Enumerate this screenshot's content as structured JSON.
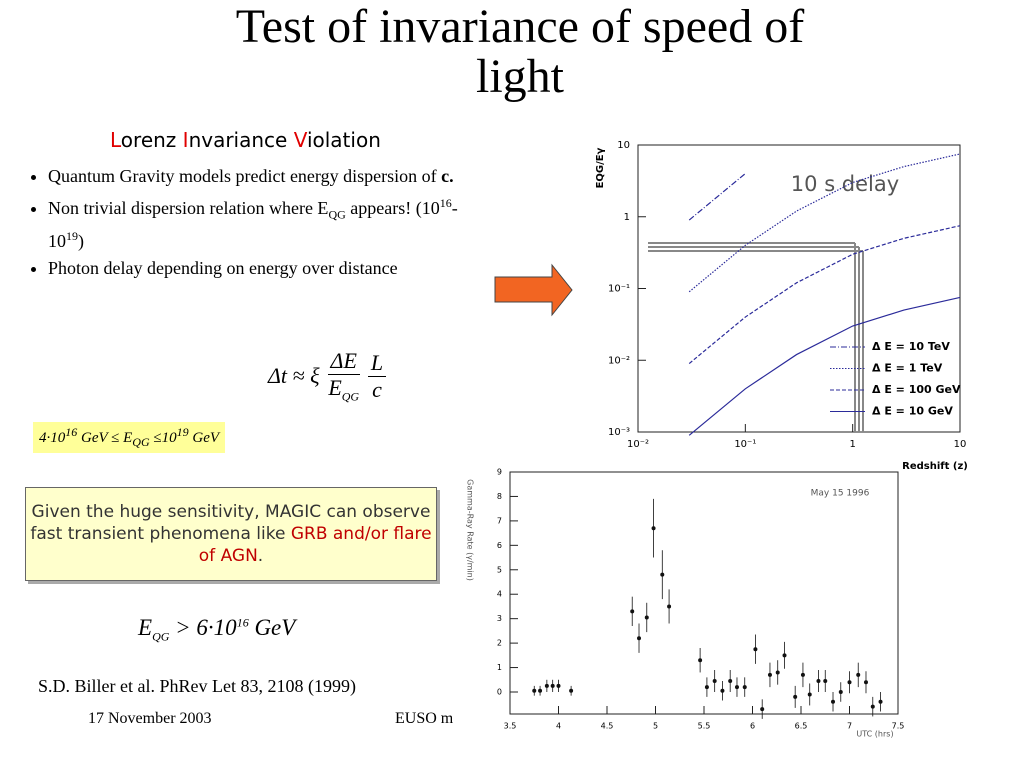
{
  "slide": {
    "title": "Test of invariance of speed of light",
    "subtitle": [
      "L",
      "orenz ",
      "I",
      "nvariance ",
      "V",
      "iolation"
    ],
    "bullets": [
      [
        "Quantum Gravity models predict energy dispersion of ",
        "c."
      ],
      [
        "Non trivial dispersion relation where E",
        "QG",
        " appears! (10",
        "16",
        "-10",
        "19",
        ")"
      ],
      [
        "Photon delay depending on energy over distance"
      ]
    ],
    "formula": [
      "Δt ≈ ξ",
      "ΔE",
      "E",
      "QG",
      "L",
      "c"
    ],
    "bounds": [
      "4·10",
      "16",
      " GeV ≤ E",
      "QG",
      " ≤10",
      "19",
      " GeV"
    ],
    "box": [
      "Given the huge sensitivity, MAGIC can observe fast transient phenomena like ",
      "GRB and/or flare of AGN",
      "."
    ],
    "result": [
      "E",
      "QG",
      " > 6·10",
      "16",
      " GeV"
    ],
    "reference": "S.D. Biller et al. PhRev Let 83, 2108 (1999)",
    "footer": {
      "date": "17 November 2003",
      "event": "EUSO m"
    }
  },
  "chart_data": [
    {
      "type": "line",
      "log_x": true,
      "log_y": true,
      "x": [
        0.03,
        0.1,
        0.3,
        1,
        3,
        10
      ],
      "xlim": [
        0.01,
        10
      ],
      "ylim": [
        0.001,
        10
      ],
      "xticks": [
        {
          "value": 0.01,
          "label": "10⁻²"
        },
        {
          "value": 0.1,
          "label": "10⁻¹"
        },
        1,
        10
      ],
      "yticks": [
        {
          "value": 0.001,
          "label": "10⁻³"
        },
        {
          "value": 0.01,
          "label": "10⁻²"
        },
        {
          "value": 0.1,
          "label": "10⁻¹"
        },
        1,
        10
      ],
      "xlabel": "Redshift (z)",
      "ylabel": "EQG/Eγ",
      "annotation": "10 s delay",
      "legend": "lower right",
      "series": [
        {
          "name": "Δ E = 10 TeV",
          "color": "#2b2b9a",
          "values": [
            0.9,
            4,
            null,
            null,
            null,
            null
          ]
        },
        {
          "name": "Δ E = 1 TeV",
          "color": "#2b2b9a",
          "values": [
            0.09,
            0.4,
            1.2,
            3,
            5,
            7.5
          ]
        },
        {
          "name": "Δ E = 100 GeV",
          "color": "#2b2b9a",
          "values": [
            0.009,
            0.04,
            0.12,
            0.3,
            0.5,
            0.75
          ]
        },
        {
          "name": "Δ E = 10 GeV",
          "color": "#2b2b9a",
          "values": [
            0.0009,
            0.004,
            0.012,
            0.03,
            0.05,
            0.075
          ]
        }
      ]
    },
    {
      "type": "errorbar",
      "title": "May 15 1996",
      "xlabel": "UTC (hrs)",
      "ylabel": "Gamma-Ray Rate (γ/min)",
      "xlim": [
        3.5,
        7.5
      ],
      "ylim": [
        -0.9,
        9
      ],
      "xticks": [
        3.5,
        4,
        4.5,
        5,
        5.5,
        6,
        6.5,
        7,
        7.5
      ],
      "yticks": [
        0,
        1,
        2,
        3,
        4,
        5,
        6,
        7,
        8,
        9
      ],
      "color": "#111111",
      "x": [
        3.75,
        3.81,
        3.88,
        3.94,
        4.0,
        4.13,
        4.76,
        4.83,
        4.91,
        4.98,
        5.07,
        5.14,
        5.46,
        5.53,
        5.61,
        5.69,
        5.77,
        5.84,
        5.92,
        6.03,
        6.1,
        6.18,
        6.26,
        6.33,
        6.44,
        6.52,
        6.59,
        6.68,
        6.75,
        6.83,
        6.91,
        7.0,
        7.09,
        7.17,
        7.24,
        7.32
      ],
      "values": [
        0.05,
        0.05,
        0.25,
        0.25,
        0.25,
        0.05,
        3.3,
        2.2,
        3.05,
        6.7,
        4.8,
        3.5,
        1.3,
        0.2,
        0.45,
        0.05,
        0.45,
        0.2,
        0.2,
        1.75,
        -0.7,
        0.7,
        0.8,
        1.5,
        -0.2,
        0.7,
        -0.1,
        0.45,
        0.45,
        -0.4,
        0,
        0.4,
        0.7,
        0.4,
        -0.6,
        -0.4
      ],
      "errors": [
        0.2,
        0.2,
        0.25,
        0.25,
        0.25,
        0.2,
        0.6,
        0.6,
        0.6,
        1.2,
        1.0,
        0.7,
        0.5,
        0.4,
        0.45,
        0.4,
        0.45,
        0.4,
        0.4,
        0.6,
        0.4,
        0.5,
        0.5,
        0.55,
        0.45,
        0.5,
        0.45,
        0.45,
        0.45,
        0.4,
        0.4,
        0.45,
        0.5,
        0.45,
        0.4,
        0.4
      ]
    }
  ]
}
